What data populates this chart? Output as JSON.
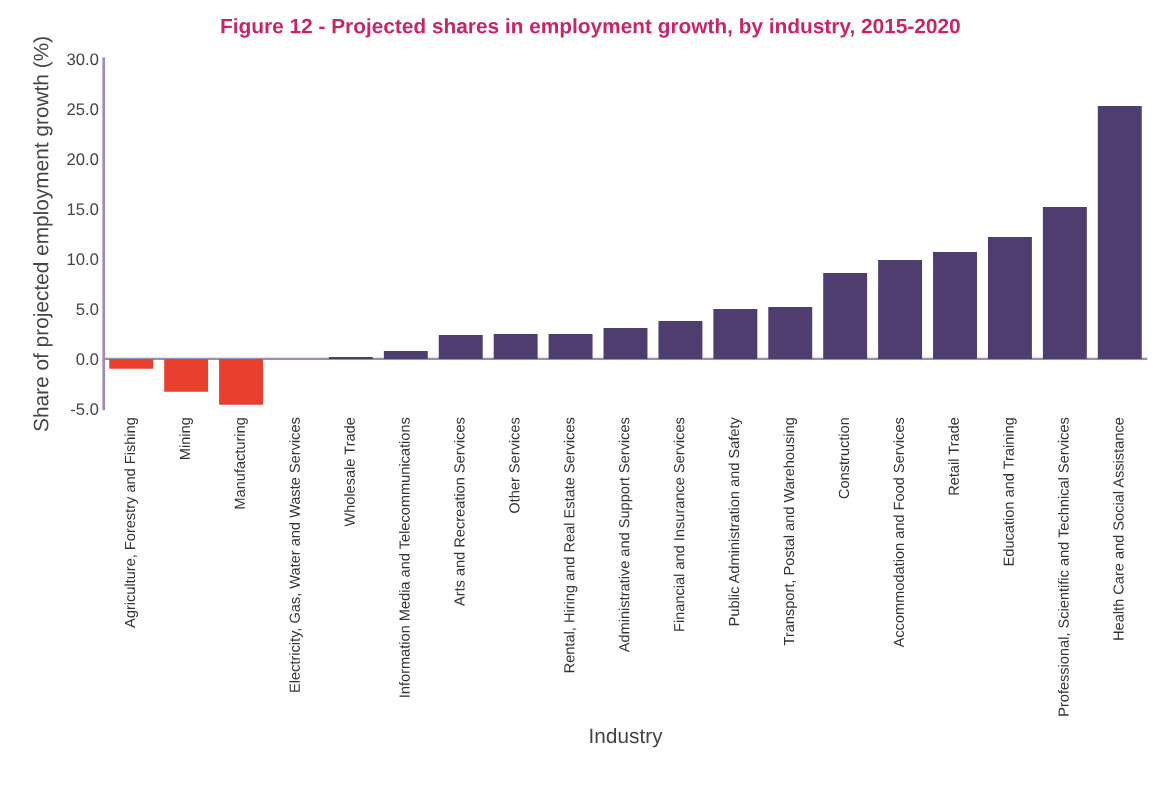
{
  "chart_data": {
    "type": "bar",
    "title": "Figure 12 - Projected shares in employment growth, by industry, 2015-2020",
    "xlabel": "Industry",
    "ylabel": "Share of projected employment growth (%)",
    "categories": [
      "Agriculture, Forestry and Fishing",
      "Mining",
      "Manufacturing",
      "Electricity, Gas, Water and Waste Services",
      "Wholesale Trade",
      "Information Media and Telecommunications",
      "Arts and Recreation Services",
      "Other Services",
      "Rental, Hiring and Real Estate Services",
      "Administrative and Support Services",
      "Financial and Insurance Services",
      "Public Administration and Safety",
      "Transport, Postal and Warehousing",
      "Construction",
      "Accommodation and Food Services",
      "Retail Trade",
      "Education and Training",
      "Professional, Scientific and Technical Services",
      "Health Care and Social Assistance"
    ],
    "values": [
      -1.0,
      -3.3,
      -4.6,
      0.0,
      0.2,
      0.8,
      2.4,
      2.5,
      2.5,
      3.1,
      3.8,
      5.0,
      5.2,
      8.6,
      9.9,
      10.7,
      12.2,
      15.2,
      25.3
    ],
    "colors": [
      "#e8402f",
      "#e8402f",
      "#e8402f",
      "#e8402f",
      "#4e3d6e",
      "#4e3d6e",
      "#4e3d6e",
      "#4e3d6e",
      "#4e3d6e",
      "#4e3d6e",
      "#4e3d6e",
      "#4e3d6e",
      "#4e3d6e",
      "#4e3d6e",
      "#4e3d6e",
      "#4e3d6e",
      "#4e3d6e",
      "#4e3d6e",
      "#4e3d6e"
    ],
    "ylim": [
      -5,
      30
    ],
    "yticks": [
      {
        "value": -5,
        "label": "-5.0"
      },
      {
        "value": 0,
        "label": "0.0"
      },
      {
        "value": 5,
        "label": "5.0"
      },
      {
        "value": 10,
        "label": "10.0"
      },
      {
        "value": 15,
        "label": "15.0"
      },
      {
        "value": 20,
        "label": "20.0"
      },
      {
        "value": 25,
        "label": "25.0"
      },
      {
        "value": 30,
        "label": "30.0"
      }
    ],
    "ref_lines": [
      {
        "axis": "y",
        "value": 0,
        "color": "#a08cb0"
      }
    ],
    "grid": false,
    "legend": false
  }
}
